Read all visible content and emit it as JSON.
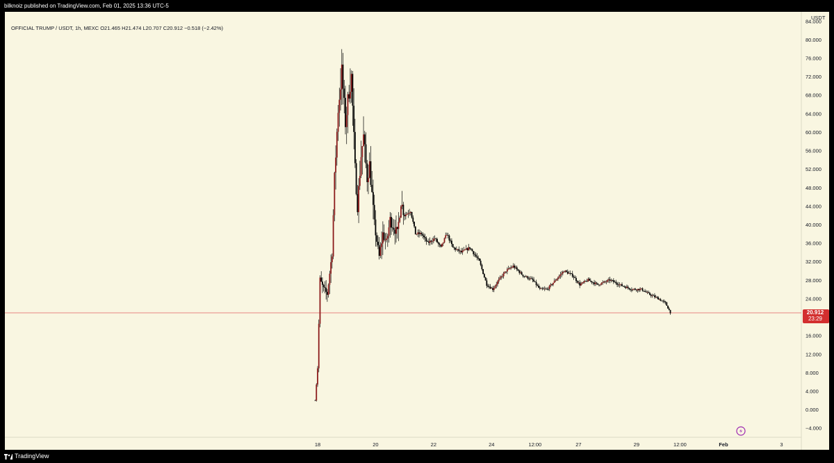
{
  "header": {
    "published": "bilknoiz published on TradingView.com, Feb 01, 2025 13:36 UTC-5"
  },
  "legend": {
    "text": "OFFICIAL TRUMP / USDT, 1h, MEXC  O21.465  H21.474  L20.707  C20.912  −0.518 (−2.42%)"
  },
  "footer": {
    "brand": "TradingView"
  },
  "price_tag": {
    "price": "20.912",
    "countdown": "23:29"
  },
  "colors": {
    "background": "#f9f6e1",
    "candle_down": "#000000",
    "candle_up": "#8b1a1a",
    "wick": "#000000",
    "price_line": "#e06060",
    "price_tag_bg": "#d32f2f",
    "tick_text": "#131722",
    "alert_icon": "#9c27b0"
  },
  "chart_data": {
    "type": "candlestick",
    "title": "OFFICIAL TRUMP / USDT, 1h, MEXC",
    "ylabel": "USDT",
    "ylim": [
      -6,
      86
    ],
    "y_ticks": [
      "84.000",
      "80.000",
      "76.000",
      "72.000",
      "68.000",
      "64.000",
      "60.000",
      "56.000",
      "52.000",
      "48.000",
      "44.000",
      "40.000",
      "36.000",
      "32.000",
      "28.000",
      "24.000",
      "16.000",
      "12.000",
      "8.000",
      "4.000",
      "0.000",
      "−4.000"
    ],
    "x_ticks": [
      "18",
      "20",
      "22",
      "24",
      "12:00",
      "27",
      "29",
      "12:00",
      "Feb",
      "3"
    ],
    "current_price": 20.912,
    "grid": false,
    "series_path": [
      [
        "Jan 17 22:00",
        2.0
      ],
      [
        "Jan 18 00:00",
        9.0
      ],
      [
        "Jan 18 02:00",
        28.0
      ],
      [
        "Jan 18 05:00",
        26.0
      ],
      [
        "Jan 18 08:00",
        25.0
      ],
      [
        "Jan 18 12:00",
        34.0
      ],
      [
        "Jan 18 14:00",
        50.0
      ],
      [
        "Jan 18 17:00",
        65.0
      ],
      [
        "Jan 18 20:00",
        73.0
      ],
      [
        "Jan 18 23:00",
        62.0
      ],
      [
        "Jan 19 02:00",
        69.0
      ],
      [
        "Jan 19 04:00",
        72.0
      ],
      [
        "Jan 19 07:00",
        52.0
      ],
      [
        "Jan 19 09:00",
        44.0
      ],
      [
        "Jan 19 12:00",
        55.0
      ],
      [
        "Jan 19 14:00",
        59.0
      ],
      [
        "Jan 19 17:00",
        50.0
      ],
      [
        "Jan 19 19:00",
        53.0
      ],
      [
        "Jan 19 23:00",
        40.0
      ],
      [
        "Jan 20 03:00",
        33.0
      ],
      [
        "Jan 20 06:00",
        38.0
      ],
      [
        "Jan 20 09:00",
        36.0
      ],
      [
        "Jan 20 12:00",
        41.0
      ],
      [
        "Jan 20 18:00",
        38.0
      ],
      [
        "Jan 20 21:00",
        45.0
      ],
      [
        "Jan 21 00:00",
        42.0
      ],
      [
        "Jan 21 05:00",
        43.0
      ],
      [
        "Jan 21 09:00",
        38.0
      ],
      [
        "Jan 21 14:00",
        38.0
      ],
      [
        "Jan 21 19:00",
        36.0
      ],
      [
        "Jan 22 01:00",
        37.0
      ],
      [
        "Jan 22 06:00",
        35.0
      ],
      [
        "Jan 22 11:00",
        38.0
      ],
      [
        "Jan 22 16:00",
        35.0
      ],
      [
        "Jan 22 23:00",
        34.0
      ],
      [
        "Jan 23 06:00",
        35.0
      ],
      [
        "Jan 23 14:00",
        32.0
      ],
      [
        "Jan 23 20:00",
        27.0
      ],
      [
        "Jan 24 01:00",
        26.0
      ],
      [
        "Jan 24 06:00",
        28.0
      ],
      [
        "Jan 24 12:00",
        30.0
      ],
      [
        "Jan 24 18:00",
        31.0
      ],
      [
        "Jan 25 02:00",
        29.0
      ],
      [
        "Jan 25 10:00",
        28.0
      ],
      [
        "Jan 25 16:00",
        26.0
      ],
      [
        "Jan 25 22:00",
        26.0
      ],
      [
        "Jan 26 05:00",
        28.0
      ],
      [
        "Jan 26 12:00",
        30.0
      ],
      [
        "Jan 26 19:00",
        29.0
      ],
      [
        "Jan 27 01:00",
        27.0
      ],
      [
        "Jan 27 08:00",
        28.0
      ],
      [
        "Jan 27 16:00",
        27.0
      ],
      [
        "Jan 28 02:00",
        28.0
      ],
      [
        "Jan 28 10:00",
        27.0
      ],
      [
        "Jan 28 20:00",
        26.0
      ],
      [
        "Jan 29 04:00",
        26.0
      ],
      [
        "Jan 29 10:00",
        25.0
      ],
      [
        "Jan 29 18:00",
        24.0
      ],
      [
        "Jan 30 00:00",
        23.0
      ],
      [
        "Jan 30 04:00",
        21.0
      ]
    ]
  }
}
